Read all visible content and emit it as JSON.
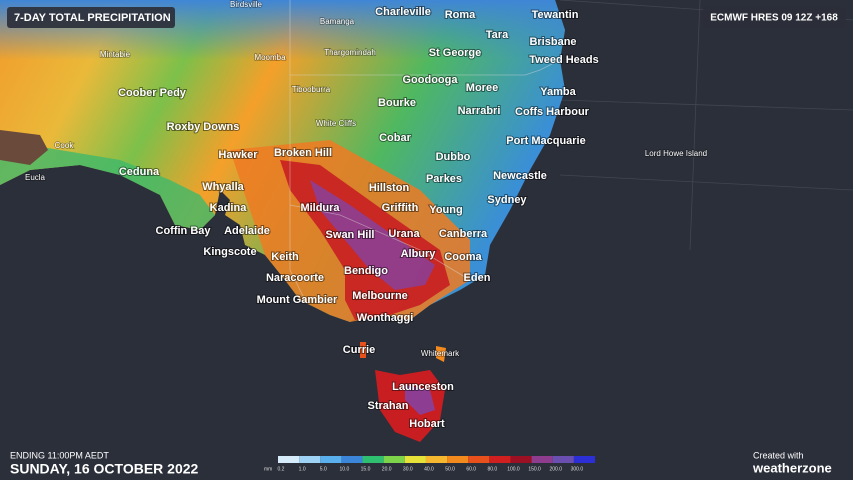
{
  "header": {
    "title": "7-DAY TOTAL PRECIPITATION",
    "model": "ECMWF HRES 09 12Z +168"
  },
  "footer": {
    "ending": "ENDING 11:00PM AEDT",
    "date": "SUNDAY, 16 OCTOBER 2022",
    "created": "Created with",
    "brand": "weatherzone"
  },
  "legend": {
    "unit": "mm",
    "items": [
      {
        "label": "0.2",
        "color": "#d6ecfb"
      },
      {
        "label": "1.0",
        "color": "#9fd3f5"
      },
      {
        "label": "5.0",
        "color": "#5ab0ec"
      },
      {
        "label": "10.0",
        "color": "#3b86d8"
      },
      {
        "label": "15.0",
        "color": "#2fbf71"
      },
      {
        "label": "20.0",
        "color": "#7dd34a"
      },
      {
        "label": "30.0",
        "color": "#e6e23a"
      },
      {
        "label": "40.0",
        "color": "#f5b82e"
      },
      {
        "label": "50.0",
        "color": "#f28a1d"
      },
      {
        "label": "60.0",
        "color": "#e8511b"
      },
      {
        "label": "80.0",
        "color": "#cf1f1f"
      },
      {
        "label": "100.0",
        "color": "#9c1024"
      },
      {
        "label": "150.0",
        "color": "#8e3c8e"
      },
      {
        "label": "200.0",
        "color": "#6a4fb0"
      },
      {
        "label": "300.0",
        "color": "#2c2fd6"
      }
    ]
  },
  "places": [
    {
      "name": "Birdsville",
      "major": false
    },
    {
      "name": "Charleville",
      "major": true
    },
    {
      "name": "Roma",
      "major": true
    },
    {
      "name": "Tewantin",
      "major": true
    },
    {
      "name": "Tara",
      "major": true
    },
    {
      "name": "Brisbane",
      "major": true
    },
    {
      "name": "Bamanga",
      "major": false
    },
    {
      "name": "Mintabie",
      "major": false
    },
    {
      "name": "Moomba",
      "major": false
    },
    {
      "name": "Thargomindah",
      "major": false
    },
    {
      "name": "St George",
      "major": true
    },
    {
      "name": "Tweed Heads",
      "major": true
    },
    {
      "name": "Goodooga",
      "major": true
    },
    {
      "name": "Coober Pedy",
      "major": true
    },
    {
      "name": "Tibooburra",
      "major": false
    },
    {
      "name": "Moree",
      "major": true
    },
    {
      "name": "Yamba",
      "major": true
    },
    {
      "name": "Bourke",
      "major": true
    },
    {
      "name": "Narrabri",
      "major": true
    },
    {
      "name": "Coffs Harbour",
      "major": true
    },
    {
      "name": "Roxby Downs",
      "major": true
    },
    {
      "name": "White Cliffs",
      "major": false
    },
    {
      "name": "Cobar",
      "major": true
    },
    {
      "name": "Port Macquarie",
      "major": true
    },
    {
      "name": "Cook",
      "major": false
    },
    {
      "name": "Hawker",
      "major": true
    },
    {
      "name": "Broken Hill",
      "major": true
    },
    {
      "name": "Dubbo",
      "major": true
    },
    {
      "name": "Lord Howe Island",
      "major": false
    },
    {
      "name": "Ceduna",
      "major": true
    },
    {
      "name": "Eucla",
      "major": false
    },
    {
      "name": "Hillston",
      "major": true
    },
    {
      "name": "Parkes",
      "major": true
    },
    {
      "name": "Newcastle",
      "major": true
    },
    {
      "name": "Whyalla",
      "major": true
    },
    {
      "name": "Sydney",
      "major": true
    },
    {
      "name": "Kadina",
      "major": true
    },
    {
      "name": "Mildura",
      "major": true
    },
    {
      "name": "Griffith",
      "major": true
    },
    {
      "name": "Young",
      "major": true
    },
    {
      "name": "Coffin Bay",
      "major": true
    },
    {
      "name": "Adelaide",
      "major": true
    },
    {
      "name": "Swan Hill",
      "major": true
    },
    {
      "name": "Urana",
      "major": true
    },
    {
      "name": "Canberra",
      "major": true
    },
    {
      "name": "Kingscote",
      "major": true
    },
    {
      "name": "Keith",
      "major": true
    },
    {
      "name": "Albury",
      "major": true
    },
    {
      "name": "Cooma",
      "major": true
    },
    {
      "name": "Naracoorte",
      "major": true
    },
    {
      "name": "Bendigo",
      "major": true
    },
    {
      "name": "Eden",
      "major": true
    },
    {
      "name": "Mount Gambier",
      "major": true
    },
    {
      "name": "Melbourne",
      "major": true
    },
    {
      "name": "Wonthaggi",
      "major": true
    },
    {
      "name": "Currie",
      "major": true
    },
    {
      "name": "Whitemark",
      "major": false
    },
    {
      "name": "Launceston",
      "major": true
    },
    {
      "name": "Strahan",
      "major": true
    },
    {
      "name": "Hobart",
      "major": true
    }
  ]
}
